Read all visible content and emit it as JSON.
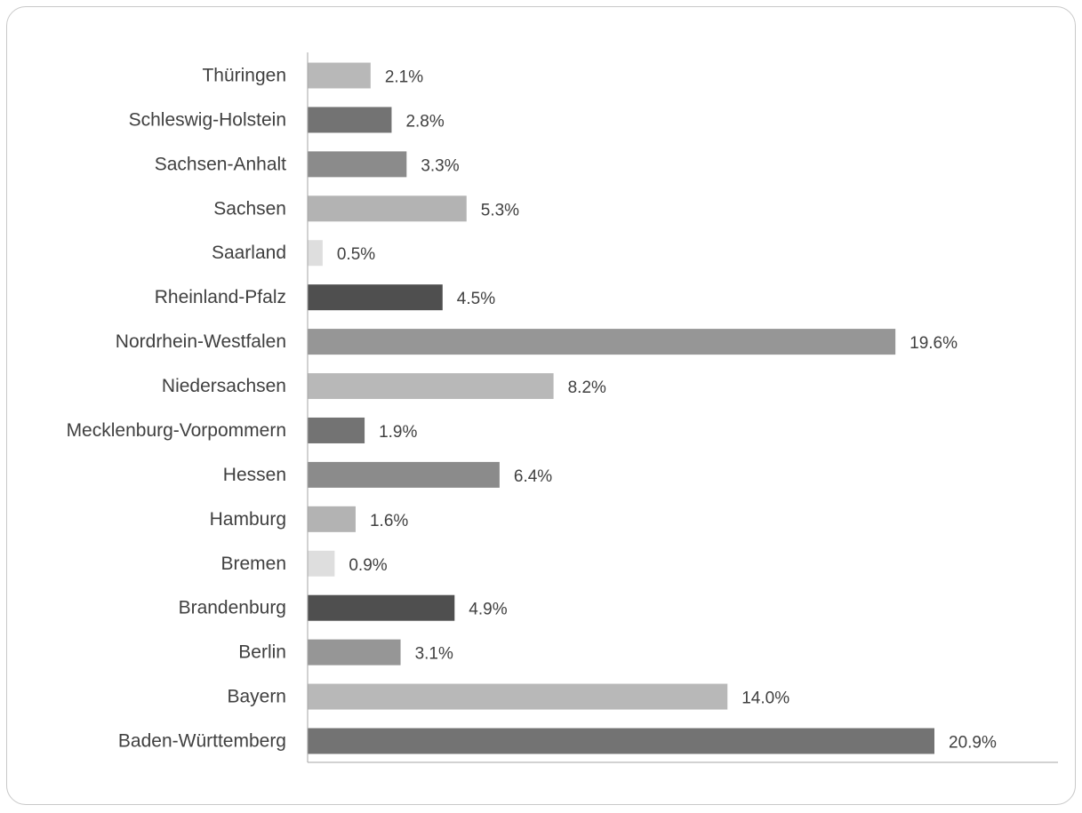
{
  "chart_data": {
    "type": "bar",
    "orientation": "horizontal",
    "categories": [
      "Thüringen",
      "Schleswig-Holstein",
      "Sachsen-Anhalt",
      "Sachsen",
      "Saarland",
      "Rheinland-Pfalz",
      "Nordrhein-Westfalen",
      "Niedersachsen",
      "Mecklenburg-Vorpommern",
      "Hessen",
      "Hamburg",
      "Bremen",
      "Brandenburg",
      "Berlin",
      "Bayern",
      "Baden-Württemberg"
    ],
    "values": [
      2.1,
      2.8,
      3.3,
      5.3,
      0.5,
      4.5,
      19.6,
      8.2,
      1.9,
      6.4,
      1.6,
      0.9,
      4.9,
      3.1,
      14.0,
      20.9
    ],
    "value_labels": [
      "2.1%",
      "2.8%",
      "3.3%",
      "5.3%",
      "0.5%",
      "4.5%",
      "19.6%",
      "8.2%",
      "1.9%",
      "6.4%",
      "1.6%",
      "0.9%",
      "4.9%",
      "3.1%",
      "14.0%",
      "20.9%"
    ],
    "bar_colors": [
      "#b8b8b8",
      "#737373",
      "#8b8b8b",
      "#b3b3b3",
      "#dedede",
      "#4f4f4f",
      "#969696",
      "#b8b8b8",
      "#737373",
      "#8b8b8b",
      "#b3b3b3",
      "#dedede",
      "#4f4f4f",
      "#969696",
      "#b8b8b8",
      "#737373"
    ],
    "title": "",
    "xlabel": "",
    "ylabel": "",
    "xlim": [
      0,
      25
    ],
    "grid": false,
    "legend": "none",
    "axis_color": "#a6a6a6",
    "text_color": "#404040"
  }
}
